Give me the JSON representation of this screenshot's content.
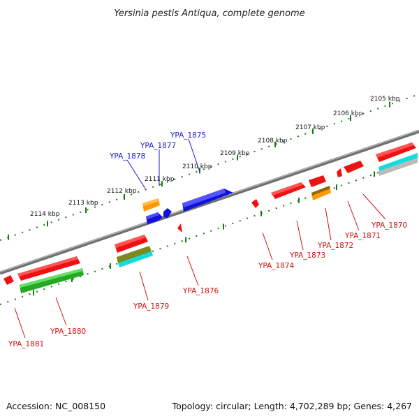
{
  "title": "Yersinia pestis Antiqua, complete genome",
  "footer": {
    "accession": "Accession: NC_008150",
    "summary": "Topology: circular; Length: 4,702,289 bp; Genes: 4,267"
  },
  "colors": {
    "backbone": "#8a8a8a",
    "tick": "#1a7a1a",
    "label_forward": "#1a1acc",
    "label_reverse": "#d01010",
    "red": "#ee1111",
    "blue": "#1111dd",
    "orange": "#ff9900",
    "green": "#22aa22",
    "olive": "#7a8a22",
    "cyan": "#11dddd",
    "gray": "#bbbbbb"
  },
  "scale_labels": [
    "2105 kbp",
    "2106 kbp",
    "2107 kbp",
    "2108 kbp",
    "2109 kbp",
    "2110 kbp",
    "2111 kbp",
    "2112 kbp",
    "2113 kbp",
    "2114 kbp"
  ],
  "gene_labels": [
    {
      "name": "YPA_1875",
      "strand": "forward"
    },
    {
      "name": "YPA_1877",
      "strand": "forward"
    },
    {
      "name": "YPA_1878",
      "strand": "forward"
    },
    {
      "name": "YPA_1870",
      "strand": "reverse"
    },
    {
      "name": "YPA_1871",
      "strand": "reverse"
    },
    {
      "name": "YPA_1872",
      "strand": "reverse"
    },
    {
      "name": "YPA_1873",
      "strand": "reverse"
    },
    {
      "name": "YPA_1874",
      "strand": "reverse"
    },
    {
      "name": "YPA_1876",
      "strand": "reverse"
    },
    {
      "name": "YPA_1879",
      "strand": "reverse"
    },
    {
      "name": "YPA_1880",
      "strand": "reverse"
    },
    {
      "name": "YPA_1881",
      "strand": "reverse"
    }
  ]
}
